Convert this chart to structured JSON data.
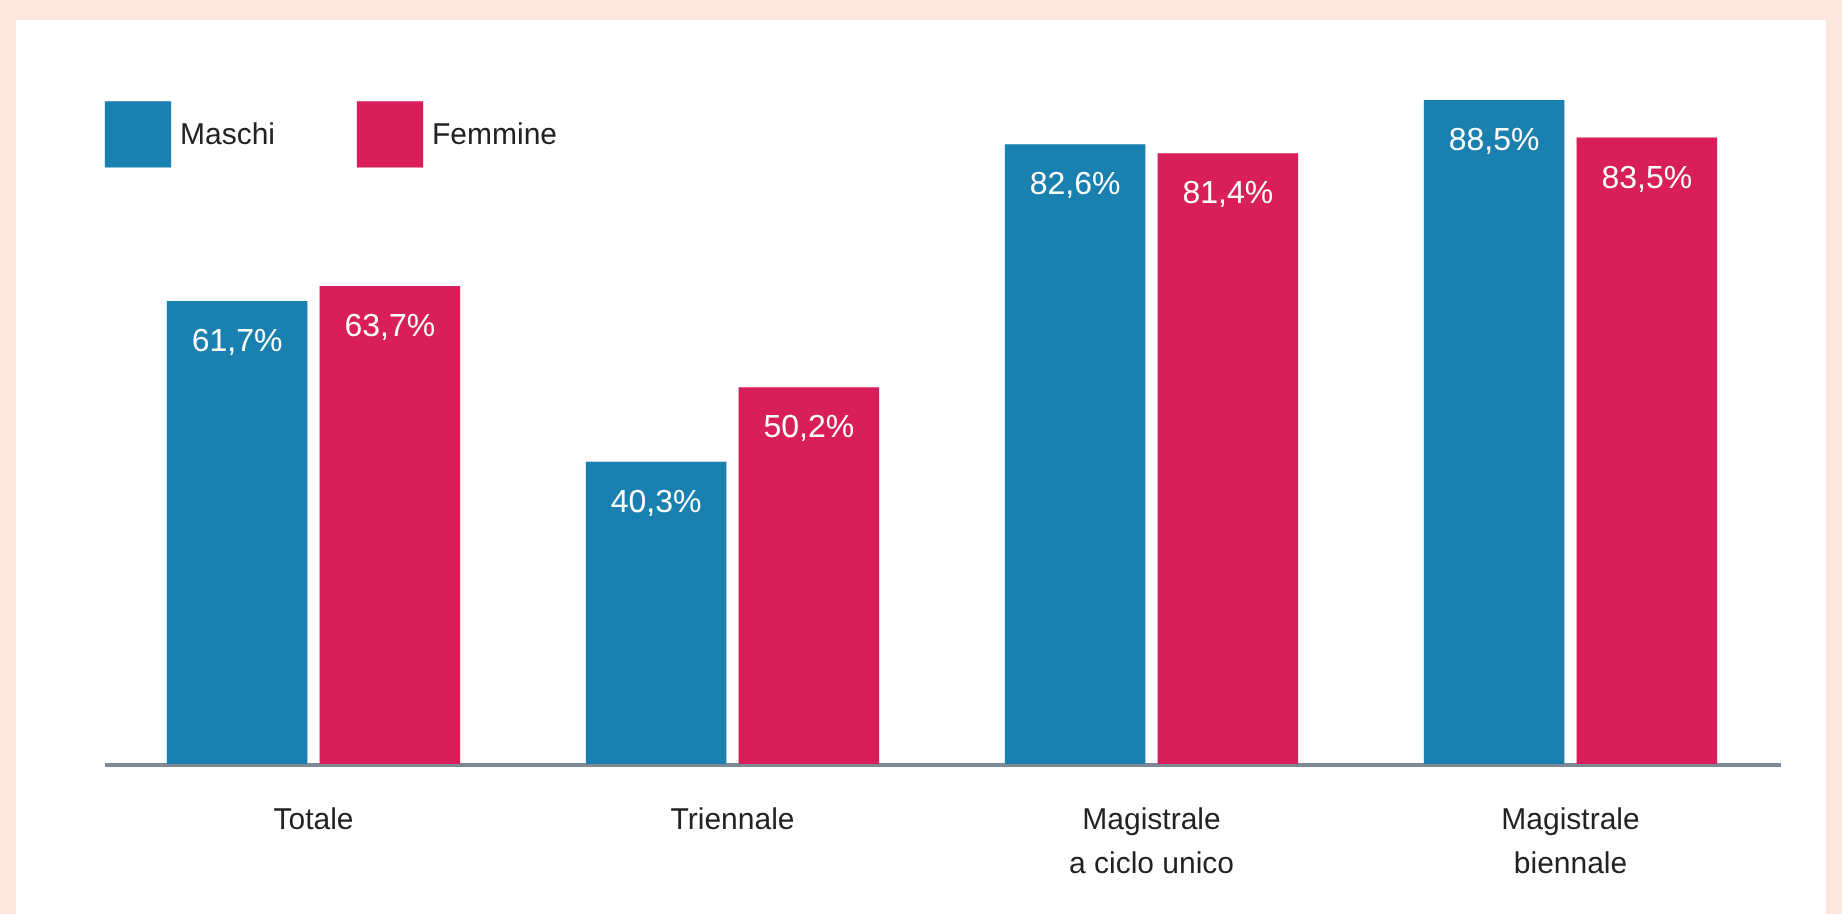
{
  "chart_data": {
    "type": "bar",
    "categories": [
      "Totale",
      "Triennale",
      "Magistrale\na ciclo unico",
      "Magistrale\nbiennale"
    ],
    "series": [
      {
        "name": "Maschi",
        "color": "#1a80b0",
        "values": [
          61.7,
          40.3,
          82.6,
          88.5
        ],
        "value_labels": [
          "61,7%",
          "40,3%",
          "82,6%",
          "88,5%"
        ]
      },
      {
        "name": "Femmine",
        "color": "#d81f5a",
        "values": [
          63.7,
          50.2,
          81.4,
          83.5
        ],
        "value_labels": [
          "63,7%",
          "50,2%",
          "81,4%",
          "83,5%"
        ]
      }
    ],
    "legend": "top left",
    "grid": false
  }
}
